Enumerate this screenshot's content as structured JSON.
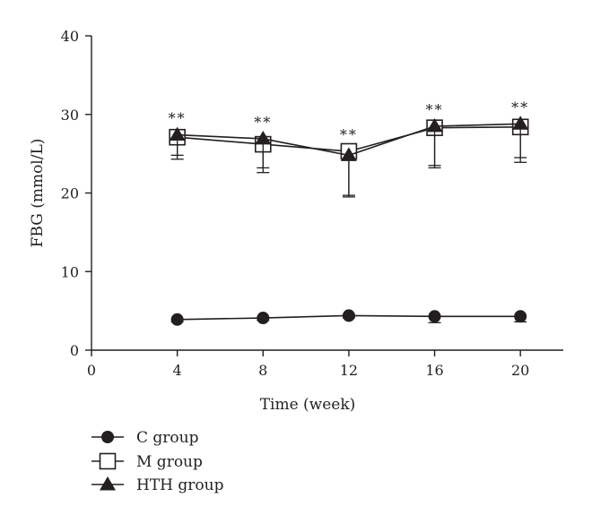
{
  "chart_data": {
    "type": "line",
    "title": "",
    "xlabel": "Time (week)",
    "ylabel": "FBG (mmol/L)",
    "xlim": [
      0,
      22
    ],
    "ylim": [
      0,
      40
    ],
    "x_ticks": [
      "0",
      "4",
      "8",
      "12",
      "16",
      "20"
    ],
    "y_ticks": [
      "0",
      "10",
      "20",
      "30",
      "40"
    ],
    "x": [
      4,
      8,
      12,
      16,
      20
    ],
    "grid": false,
    "legend_position": "bottom-left",
    "series": [
      {
        "name": "C group",
        "marker": "filled-circle",
        "values": [
          3.9,
          4.1,
          4.4,
          4.3,
          4.3
        ],
        "error": [
          0.3,
          0.3,
          0.3,
          0.8,
          0.7
        ],
        "color": "#231f20"
      },
      {
        "name": "M group",
        "marker": "open-square",
        "values": [
          27.1,
          26.2,
          25.3,
          28.3,
          28.4
        ],
        "error": [
          2.8,
          3.6,
          5.6,
          4.8,
          4.5
        ],
        "color": "#231f20"
      },
      {
        "name": "HTH group",
        "marker": "filled-triangle",
        "values": [
          27.4,
          26.9,
          24.8,
          28.5,
          28.8
        ],
        "error": [
          2.6,
          3.7,
          5.3,
          5.3,
          4.3
        ],
        "color": "#231f20"
      }
    ],
    "annotations": [
      {
        "x": 4,
        "text": "**"
      },
      {
        "x": 8,
        "text": "**"
      },
      {
        "x": 12,
        "text": "**"
      },
      {
        "x": 16,
        "text": "**"
      },
      {
        "x": 20,
        "text": "**"
      }
    ]
  }
}
